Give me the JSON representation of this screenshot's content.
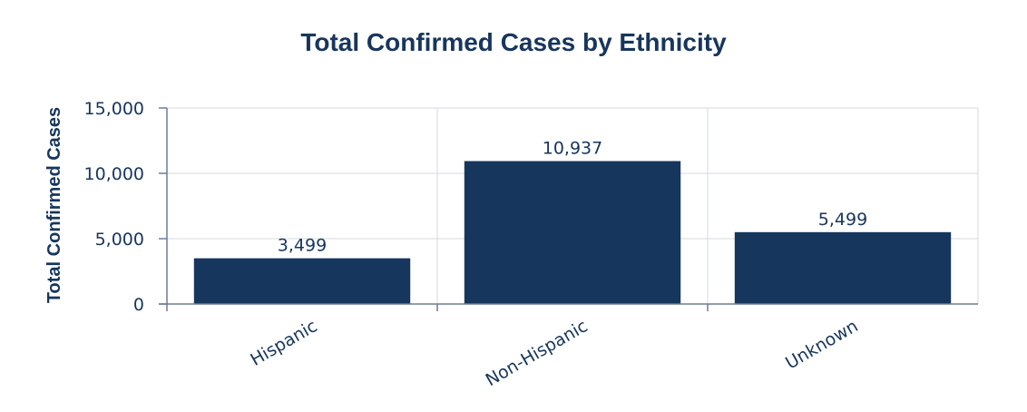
{
  "chart_data": {
    "type": "bar",
    "title": "Total Confirmed Cases by Ethnicity",
    "xlabel": "",
    "ylabel": "Total Confirmed Cases",
    "categories": [
      "Hispanic",
      "Non-Hispanic",
      "Unknown"
    ],
    "values": [
      3499,
      10937,
      5499
    ],
    "data_labels": [
      "3,499",
      "10,937",
      "5,499"
    ],
    "ylim": [
      0,
      15000
    ],
    "yticks": [
      0,
      5000,
      10000,
      15000
    ],
    "ytick_labels": [
      "0",
      "5,000",
      "10,000",
      "15,000"
    ],
    "grid": true,
    "bar_color": "#17365d",
    "text_color": "#17365d"
  }
}
